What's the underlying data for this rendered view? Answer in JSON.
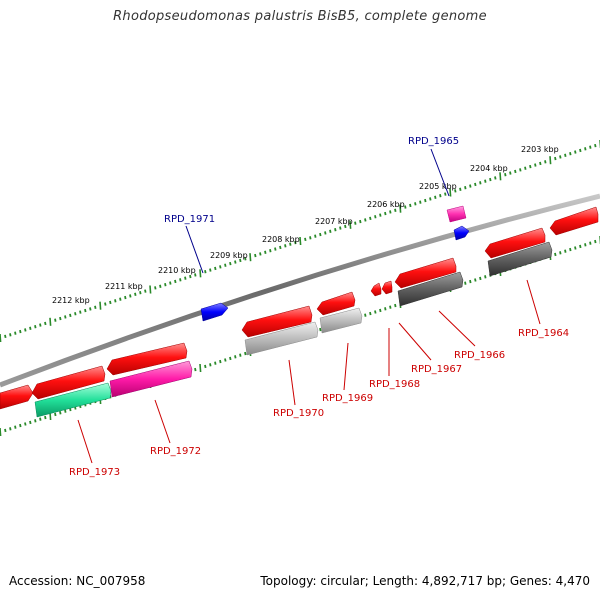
{
  "title": "Rhodopseudomonas palustris BisB5, complete genome",
  "footer": {
    "accession": "Accession: NC_007958",
    "summary": "Topology: circular; Length: 4,892,717 bp; Genes: 4,470"
  },
  "colors": {
    "backbone": "#7a7a7a",
    "tick": "#2a8a2a",
    "tick_label": "#000000",
    "highlight_label": "#00008b",
    "gene_label": "#cc0000"
  },
  "scale_labels": [
    "2212 kbp",
    "2211 kbp",
    "2210 kbp",
    "2209 kbp",
    "2208 kbp",
    "2207 kbp",
    "2206 kbp",
    "2205 kbp",
    "2204 kbp",
    "2203 kbp"
  ],
  "highlight_labels": [
    "RPD_1971",
    "RPD_1965"
  ],
  "gene_labels": [
    "RPD_1973",
    "RPD_1972",
    "RPD_1970",
    "RPD_1969",
    "RPD_1968",
    "RPD_1967",
    "RPD_1966",
    "RPD_1964"
  ]
}
